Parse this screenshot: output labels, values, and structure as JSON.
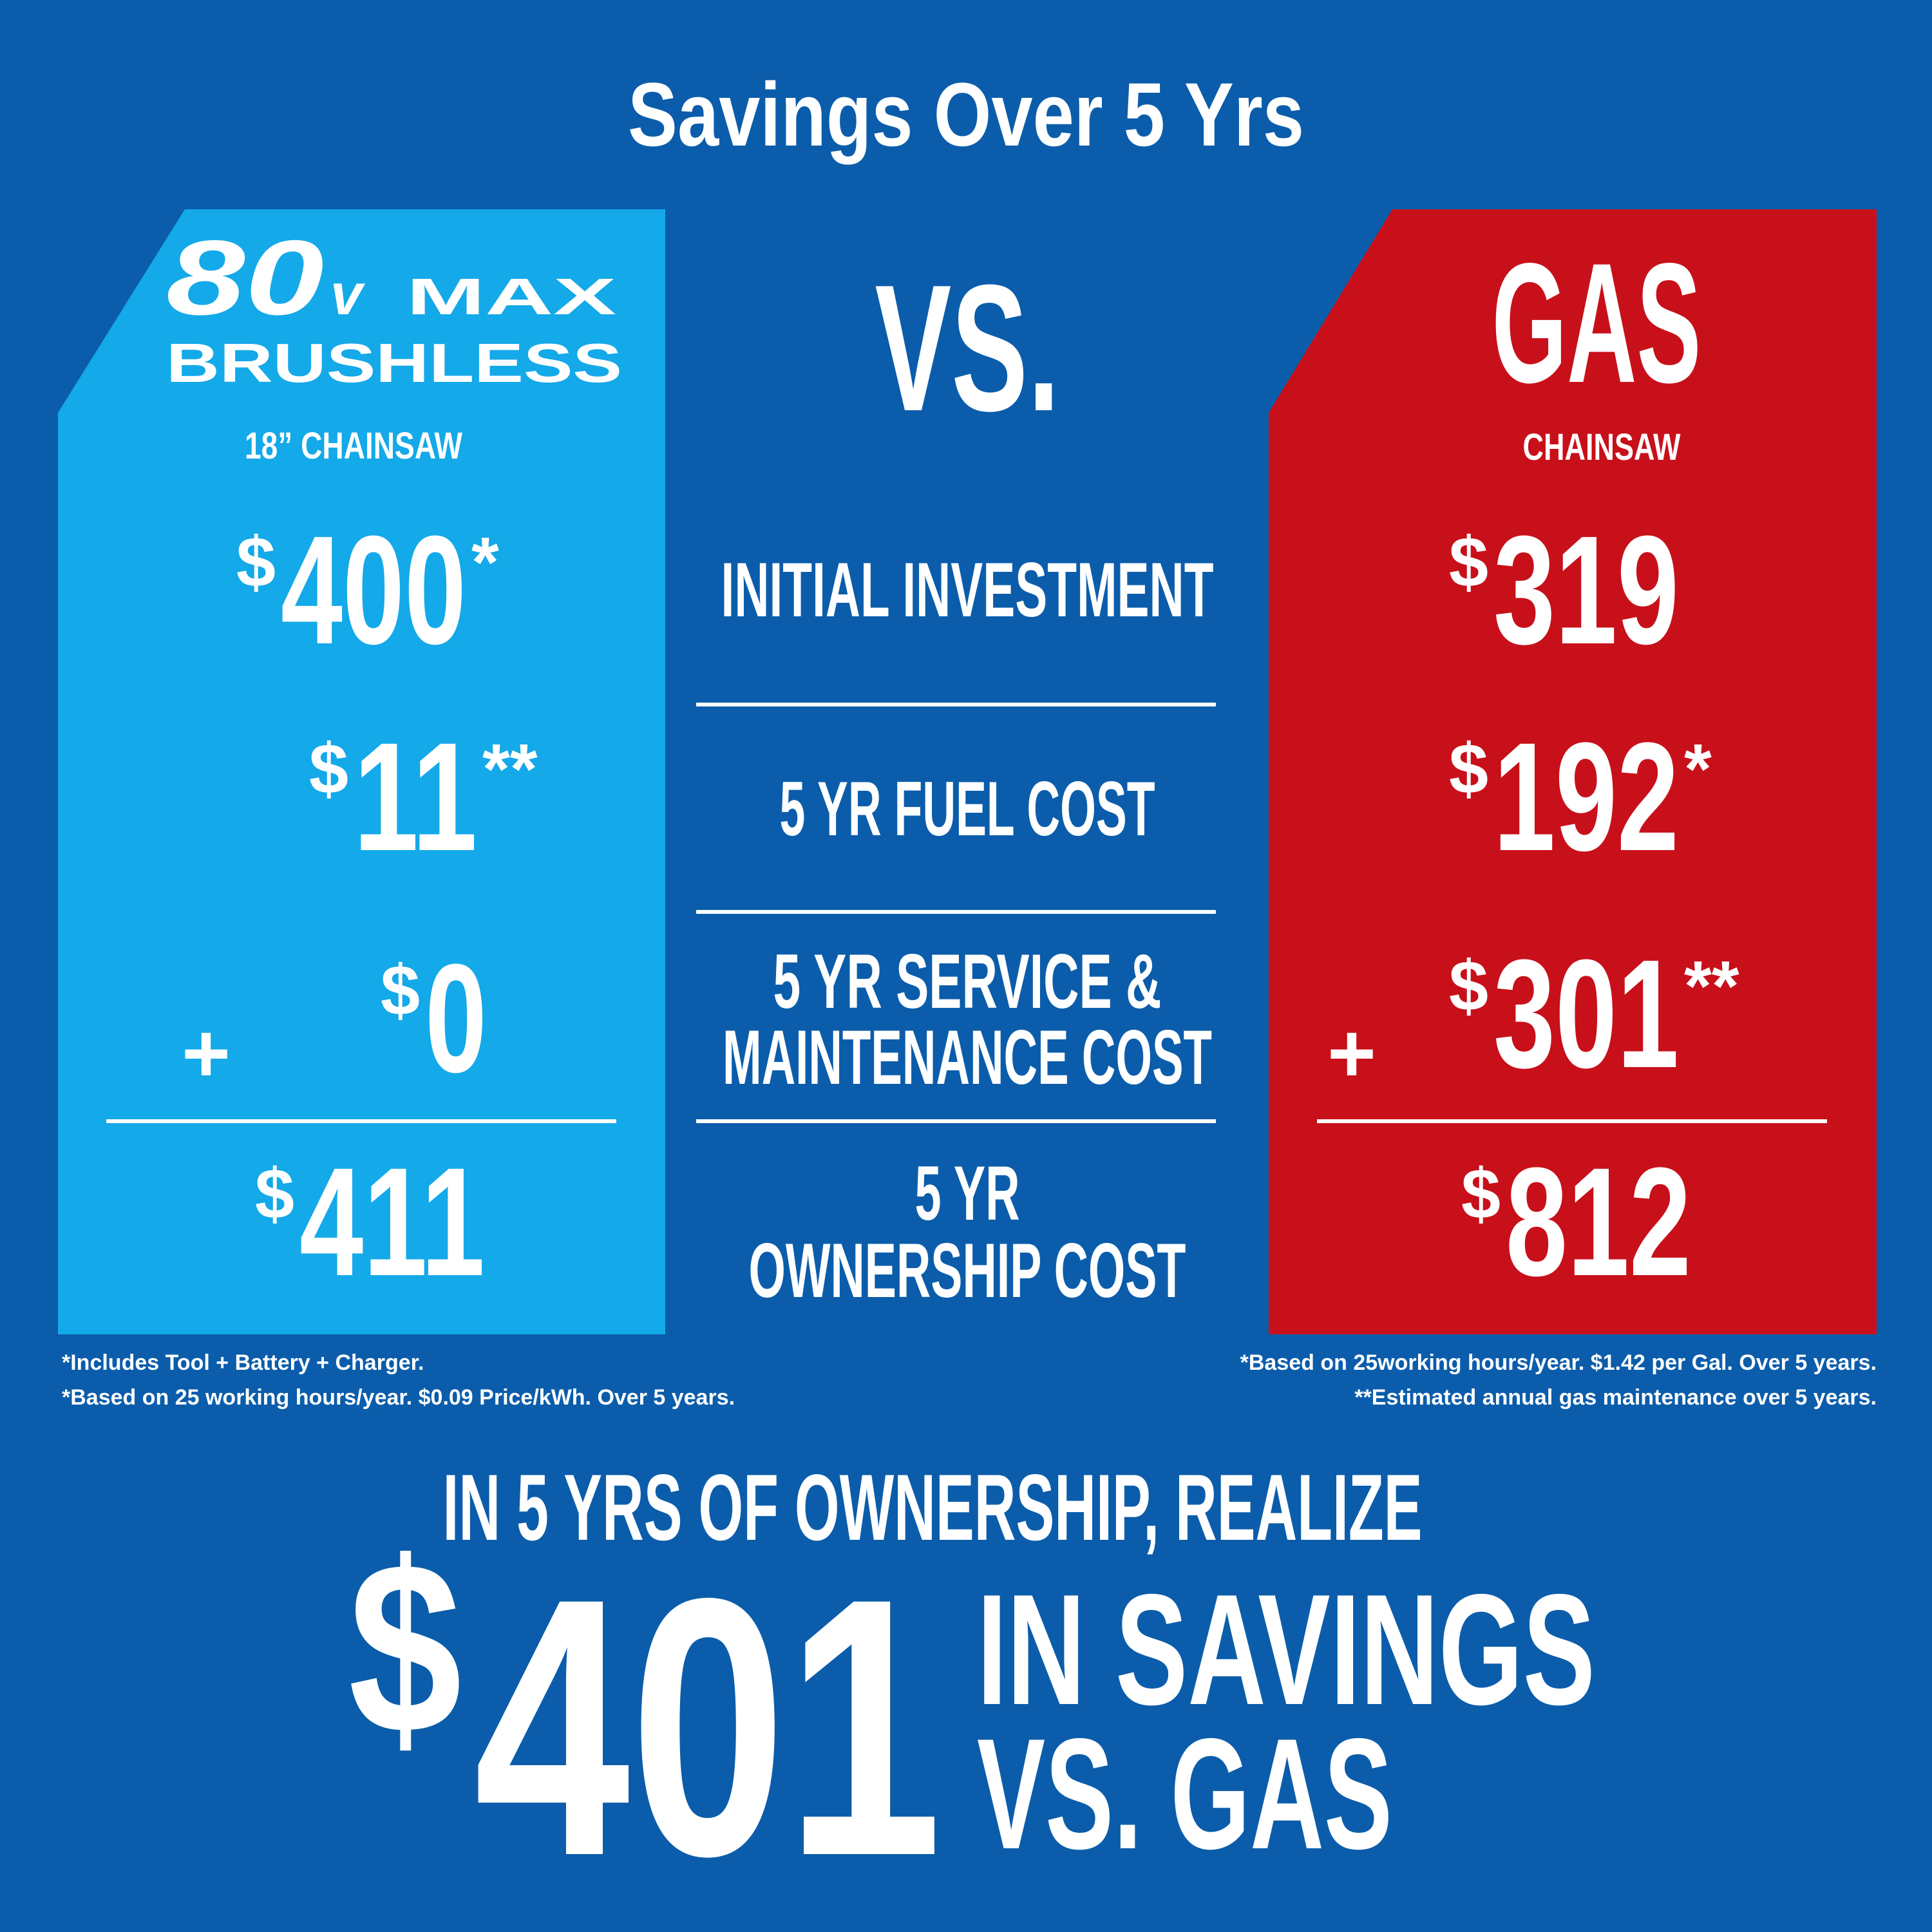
{
  "title": "Savings Over 5 Yrs",
  "currency": "$",
  "plus": "+",
  "vs": "VS.",
  "electric": {
    "logo": {
      "number": "80",
      "unit": "v",
      "max": "MAX",
      "line2": "BRUSHLESS"
    },
    "product": "18” CHAINSAW",
    "costs": [
      {
        "amount": 400,
        "note": "*"
      },
      {
        "amount": 11,
        "note": "**"
      },
      {
        "amount": 0
      }
    ],
    "total": 411,
    "footnotes": [
      "*Includes Tool + Battery + Charger.",
      "*Based on 25 working hours/year. $0.09 Price/kWh. Over 5 years."
    ]
  },
  "gas": {
    "name": "GAS",
    "product": "CHAINSAW",
    "costs": [
      {
        "amount": 319
      },
      {
        "amount": 192,
        "note": "*"
      },
      {
        "amount": 301,
        "note": "**"
      }
    ],
    "total": 812,
    "footnotes": [
      "*Based on 25working hours/year. $1.42 per Gal. Over 5 years.",
      "**Estimated annual gas maintenance over 5 years."
    ]
  },
  "rows": [
    [
      "INITIAL INVESTMENT"
    ],
    [
      "5 YR FUEL COST"
    ],
    [
      "5 YR SERVICE &",
      "MAINTENANCE COST"
    ],
    [
      "5 YR",
      "OWNERSHIP COST"
    ]
  ],
  "summary": {
    "lead": "IN 5 YRS OF OWNERSHIP, REALIZE",
    "amount": 401,
    "tail": [
      "IN SAVINGS",
      "VS. GAS"
    ]
  }
}
